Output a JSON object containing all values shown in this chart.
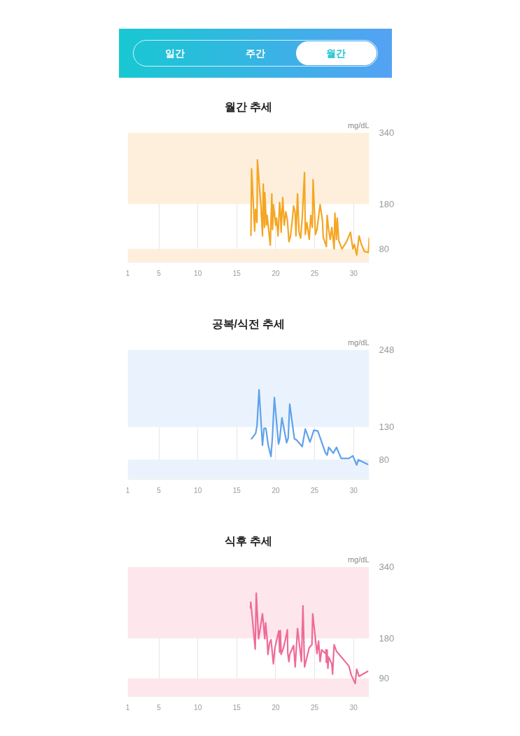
{
  "chart_data": [
    {
      "type": "other",
      "annotations": [
        "일간",
        "주간",
        "월간"
      ]
    },
    {
      "type": "line",
      "title": "월간 추세",
      "ylabel": "mg/dL",
      "xlim": [
        1,
        32
      ],
      "xticks": [
        1,
        5,
        10,
        15,
        20,
        25,
        30
      ],
      "ylim": [
        50,
        340
      ],
      "yticks": [
        80,
        180,
        340
      ],
      "grid": "x",
      "bands": [
        {
          "axis": "y",
          "from": 180,
          "to": 340,
          "color": "#fdefdb"
        },
        {
          "axis": "y",
          "from": 50,
          "to": 80,
          "color": "#fdefdb"
        }
      ],
      "series": [
        {
          "color": "#f5a623",
          "x": [
            16.82,
            16.9,
            17.3,
            17.4,
            17.6,
            17.65,
            18.1,
            18.3,
            18.4,
            18.55,
            18.6,
            18.8,
            18.9,
            19.3,
            19.5,
            19.6,
            19.7,
            20.0,
            20.1,
            20.3,
            20.5,
            20.6,
            20.7,
            20.9,
            21.1,
            21.3,
            21.5,
            21.7,
            21.9,
            22.1,
            22.3,
            22.5,
            22.6,
            22.8,
            23.0,
            23.2,
            23.4,
            23.7,
            23.8,
            24.0,
            24.3,
            24.5,
            24.7,
            24.8,
            25.1,
            25.3,
            25.7,
            26.0,
            26.1,
            26.5,
            26.6,
            26.8,
            27.0,
            27.2,
            27.5,
            27.6,
            27.8,
            27.9,
            28.1,
            28.5,
            29.1,
            29.6,
            29.9,
            30.1,
            30.4,
            30.7,
            31.0,
            31.4,
            31.9,
            32.0
          ],
          "values": [
            110,
            259,
            120,
            168,
            139,
            279,
            176,
            109,
            225,
            128,
            206,
            133,
            155,
            88,
            203,
            123,
            179,
            133,
            149,
            109,
            184,
            166,
            117,
            195,
            133,
            163,
            144,
            96,
            109,
            139,
            176,
            160,
            109,
            203,
            117,
            104,
            149,
            251,
            112,
            139,
            101,
            155,
            128,
            235,
            112,
            123,
            179,
            144,
            106,
            85,
            155,
            123,
            101,
            128,
            80,
            160,
            101,
            149,
            98,
            80,
            96,
            117,
            80,
            90,
            66,
            109,
            90,
            74,
            72,
            104
          ]
        }
      ]
    },
    {
      "type": "line",
      "title": "공복/식전 추세",
      "ylabel": "mg/dL",
      "xlim": [
        1,
        32
      ],
      "xticks": [
        1,
        5,
        10,
        15,
        20,
        25,
        30
      ],
      "ylim": [
        50,
        248
      ],
      "yticks": [
        80,
        130,
        248
      ],
      "grid": "x",
      "bands": [
        {
          "axis": "y",
          "from": 130,
          "to": 248,
          "color": "#eaf3fd"
        },
        {
          "axis": "y",
          "from": 50,
          "to": 80,
          "color": "#eaf3fd"
        }
      ],
      "series": [
        {
          "color": "#5fa2ea",
          "x": [
            16.89,
            17.42,
            17.6,
            17.86,
            18.3,
            18.5,
            18.74,
            19.04,
            19.39,
            19.57,
            19.83,
            20.36,
            20.5,
            20.8,
            21.4,
            21.6,
            21.8,
            22.4,
            22.7,
            23.4,
            23.8,
            24.4,
            24.9,
            25.4,
            26.4,
            26.6,
            26.8,
            27.4,
            27.8,
            28.4,
            29.4,
            29.9,
            30.4,
            30.6,
            31.8
          ],
          "values": [
            112,
            120,
            132,
            187,
            102,
            128,
            128,
            102,
            85,
            113,
            175,
            104,
            110,
            144,
            106,
            113,
            165,
            112,
            110,
            100,
            127,
            107,
            125,
            124,
            90,
            87,
            99,
            90,
            99,
            82,
            82,
            86,
            72,
            80,
            73
          ]
        }
      ]
    },
    {
      "type": "line",
      "title": "식후 추세",
      "ylabel": "mg/dL",
      "xlim": [
        1,
        32
      ],
      "xticks": [
        1,
        5,
        10,
        15,
        20,
        25,
        30
      ],
      "ylim": [
        50,
        340
      ],
      "yticks": [
        90,
        180,
        340
      ],
      "grid": "x",
      "bands": [
        {
          "axis": "y",
          "from": 180,
          "to": 340,
          "color": "#fde6ec"
        },
        {
          "axis": "y",
          "from": 50,
          "to": 90,
          "color": "#fde6ec"
        }
      ],
      "series": [
        {
          "color": "#ef6b98",
          "x": [
            16.76,
            16.8,
            17.37,
            17.5,
            17.8,
            18.3,
            18.6,
            18.7,
            18.9,
            19.0,
            19.2,
            19.4,
            19.7,
            19.9,
            20.4,
            20.5,
            20.6,
            20.7,
            21.0,
            21.3,
            21.5,
            21.55,
            21.7,
            21.8,
            22.3,
            22.5,
            22.8,
            23.3,
            23.5,
            23.7,
            24.3,
            24.65,
            24.75,
            25.3,
            25.5,
            25.7,
            25.9,
            26.4,
            26.45,
            26.5,
            26.6,
            26.7,
            26.8,
            27.2,
            27.3,
            27.5,
            27.8,
            29.4,
            29.7,
            30.2,
            30.4,
            30.7,
            31.8
          ],
          "values": [
            248,
            261,
            156,
            281,
            179,
            235,
            179,
            215,
            179,
            144,
            169,
            177,
            123,
            159,
            197,
            149,
            197,
            144,
            159,
            182,
            199,
            146,
            128,
            144,
            164,
            116,
            202,
            128,
            253,
            116,
            159,
            166,
            235,
            146,
            174,
            128,
            154,
            146,
            154,
            126,
            154,
            113,
            138,
            123,
            100,
            166,
            151,
            118,
            98,
            79,
            111,
            95,
            106
          ]
        }
      ]
    }
  ]
}
